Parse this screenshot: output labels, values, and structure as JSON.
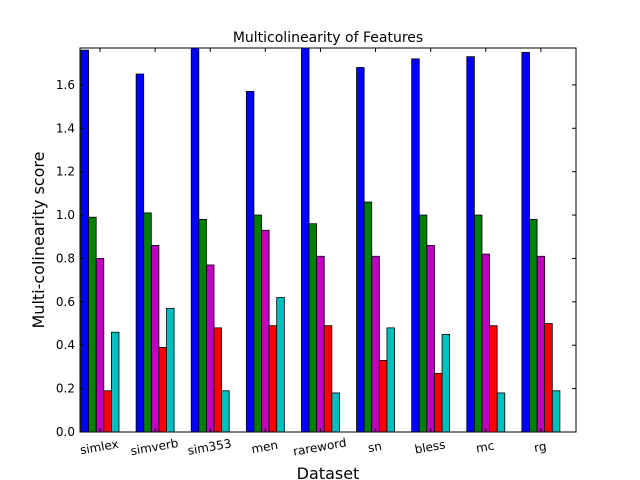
{
  "chart_data": {
    "type": "bar",
    "title": "Multicolinearity of Features",
    "xlabel": "Dataset",
    "ylabel": "Multi-colinearity score",
    "categories": [
      "simlex",
      "simverb",
      "sim353",
      "men",
      "rareword",
      "sn",
      "bless",
      "mc",
      "rg"
    ],
    "ylim": [
      0,
      1.77
    ],
    "yticks": [
      "0.0",
      "0.2",
      "0.4",
      "0.6",
      "0.8",
      "1.0",
      "1.2",
      "1.4",
      "1.6"
    ],
    "grid": false,
    "series": [
      {
        "values": [
          1.76,
          1.65,
          1.77,
          1.57,
          1.77,
          1.68,
          1.72,
          1.73,
          1.75
        ]
      },
      {
        "values": [
          0.99,
          1.01,
          0.98,
          1.0,
          0.96,
          1.06,
          1.0,
          1.0,
          0.98
        ]
      },
      {
        "values": [
          0.8,
          0.86,
          0.77,
          0.93,
          0.81,
          0.81,
          0.86,
          0.82,
          0.81
        ]
      },
      {
        "values": [
          0.19,
          0.39,
          0.48,
          0.49,
          0.49,
          0.33,
          0.27,
          0.49,
          0.5
        ]
      },
      {
        "values": [
          0.46,
          0.57,
          0.19,
          0.62,
          0.18,
          0.48,
          0.45,
          0.18,
          0.19
        ]
      }
    ],
    "colors": [
      "#0000ff",
      "#008000",
      "#bf00bf",
      "#ff0000",
      "#00bfbf"
    ]
  }
}
